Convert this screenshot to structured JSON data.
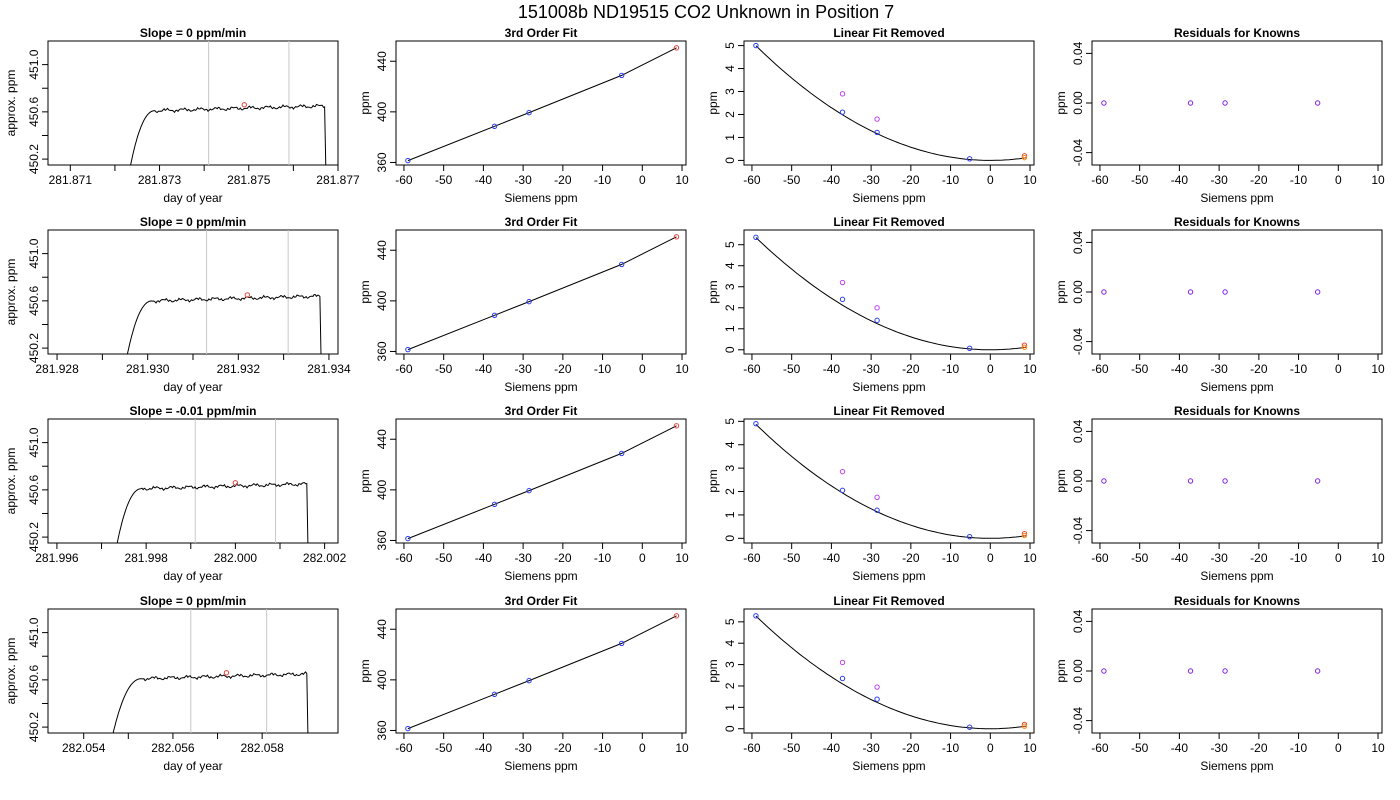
{
  "figure": {
    "title": "151008b     ND19515   CO2 Unknown in Position  7"
  },
  "chart_data": [
    {
      "type": "line",
      "panel": "time-series",
      "row": 1,
      "title": "Slope =  0  ppm/min",
      "xlabel": "day of year",
      "ylabel": "approx. ppm",
      "xlim": [
        281.8705,
        281.877
      ],
      "ylim": [
        450.15,
        451.2
      ],
      "xticks": [
        281.871,
        281.873,
        281.875,
        281.877
      ],
      "xtick_labels": [
        "281.871",
        "281.873",
        "281.875",
        "281.877"
      ],
      "yticks": [
        450.2,
        450.6,
        451.0
      ],
      "ytick_labels": [
        "450.2",
        "450.6",
        "451.0"
      ],
      "vlines": [
        281.8741,
        281.8759
      ],
      "trace": {
        "start": 281.8723,
        "end": 281.8767,
        "rise_end": 281.8729,
        "level": 450.66
      },
      "marker": {
        "x": 281.8749,
        "y": 450.66,
        "color": "#e8403a"
      }
    },
    {
      "type": "line",
      "panel": "time-series",
      "row": 2,
      "title": "Slope =  0  ppm/min",
      "xlabel": "day of year",
      "ylabel": "approx. ppm",
      "xlim": [
        281.9278,
        281.9342
      ],
      "ylim": [
        450.15,
        451.2
      ],
      "xticks": [
        281.928,
        281.93,
        281.932,
        281.934
      ],
      "xtick_labels": [
        "281.928",
        "281.930",
        "281.932",
        "281.934"
      ],
      "yticks": [
        450.2,
        450.6,
        451.0
      ],
      "ytick_labels": [
        "450.2",
        "450.6",
        "451.0"
      ],
      "vlines": [
        281.9313,
        281.9331
      ],
      "trace": {
        "start": 281.9295,
        "end": 281.9338,
        "rise_end": 281.9301,
        "level": 450.65
      },
      "marker": {
        "x": 281.9322,
        "y": 450.65,
        "color": "#e8403a"
      }
    },
    {
      "type": "line",
      "panel": "time-series",
      "row": 3,
      "title": "Slope =  -0.01  ppm/min",
      "xlabel": "day of year",
      "ylabel": "approx. ppm",
      "xlim": [
        281.9958,
        282.0023
      ],
      "ylim": [
        450.15,
        451.2
      ],
      "xticks": [
        281.996,
        281.998,
        282.0,
        282.002
      ],
      "xtick_labels": [
        "281.996",
        "281.998",
        "282.000",
        "282.002"
      ],
      "yticks": [
        450.2,
        450.6,
        451.0
      ],
      "ytick_labels": [
        "450.2",
        "450.6",
        "451.0"
      ],
      "vlines": [
        281.9991,
        282.0009
      ],
      "trace": {
        "start": 281.9973,
        "end": 282.0016,
        "rise_end": 281.9979,
        "level": 450.66
      },
      "marker": {
        "x": 282.0,
        "y": 450.66,
        "color": "#e8403a"
      }
    },
    {
      "type": "line",
      "panel": "time-series",
      "row": 4,
      "title": "Slope =  0  ppm/min",
      "xlabel": "day of year",
      "ylabel": "approx. ppm",
      "xlim": [
        282.0532,
        282.0597
      ],
      "ylim": [
        450.15,
        451.2
      ],
      "xticks": [
        282.054,
        282.056,
        282.058
      ],
      "xtick_labels": [
        "282.054",
        "282.056",
        "282.058"
      ],
      "yticks": [
        450.2,
        450.6,
        451.0
      ],
      "ytick_labels": [
        "450.2",
        "450.6",
        "451.0"
      ],
      "vlines": [
        282.0564,
        282.0581
      ],
      "trace": {
        "start": 282.0546,
        "end": 282.059,
        "rise_end": 282.0553,
        "level": 450.66
      },
      "marker": {
        "x": 282.0572,
        "y": 450.66,
        "color": "#e8403a"
      }
    },
    {
      "type": "scatter",
      "panel": "fit",
      "row": 1,
      "title": "3rd Order Fit",
      "xlabel": "Siemens ppm",
      "ylabel": "ppm",
      "xlim": [
        -62,
        11
      ],
      "ylim": [
        358,
        456
      ],
      "xticks": [
        -60,
        -50,
        -40,
        -30,
        -20,
        -10,
        0,
        10
      ],
      "yticks": [
        360,
        400,
        440
      ],
      "points": [
        {
          "x": -59,
          "y": 361.5,
          "color": "#2a3cf0"
        },
        {
          "x": -37.2,
          "y": 388.6,
          "color": "#2a3cf0"
        },
        {
          "x": -28.5,
          "y": 399.4,
          "color": "#2a3cf0"
        },
        {
          "x": -5.2,
          "y": 428.8,
          "color": "#2a3cf0"
        },
        {
          "x": 8.6,
          "y": 450.6,
          "color": "#e8403a"
        }
      ],
      "line": [
        [
          -59,
          361.5
        ],
        [
          -37.2,
          388.6
        ],
        [
          -28.5,
          399.4
        ],
        [
          -5.2,
          428.8
        ],
        [
          8.6,
          450.6
        ]
      ]
    },
    {
      "type": "scatter",
      "panel": "fit",
      "row": 2,
      "title": "3rd Order Fit",
      "xlabel": "Siemens ppm",
      "ylabel": "ppm",
      "xlim": [
        -62,
        11
      ],
      "ylim": [
        358,
        456
      ],
      "xticks": [
        -60,
        -50,
        -40,
        -30,
        -20,
        -10,
        0,
        10
      ],
      "yticks": [
        360,
        400,
        440
      ],
      "points": [
        {
          "x": -59,
          "y": 361.5,
          "color": "#2a3cf0"
        },
        {
          "x": -37.2,
          "y": 388.6,
          "color": "#2a3cf0"
        },
        {
          "x": -28.5,
          "y": 399.4,
          "color": "#2a3cf0"
        },
        {
          "x": -5.2,
          "y": 428.8,
          "color": "#2a3cf0"
        },
        {
          "x": 8.6,
          "y": 450.6,
          "color": "#e8403a"
        }
      ],
      "line": [
        [
          -59,
          361.5
        ],
        [
          -37.2,
          388.6
        ],
        [
          -28.5,
          399.4
        ],
        [
          -5.2,
          428.8
        ],
        [
          8.6,
          450.6
        ]
      ]
    },
    {
      "type": "scatter",
      "panel": "fit",
      "row": 3,
      "title": "3rd Order Fit",
      "xlabel": "Siemens ppm",
      "ylabel": "ppm",
      "xlim": [
        -62,
        11
      ],
      "ylim": [
        358,
        456
      ],
      "xticks": [
        -60,
        -50,
        -40,
        -30,
        -20,
        -10,
        0,
        10
      ],
      "yticks": [
        360,
        400,
        440
      ],
      "points": [
        {
          "x": -59,
          "y": 361.5,
          "color": "#2a3cf0"
        },
        {
          "x": -37.2,
          "y": 388.6,
          "color": "#2a3cf0"
        },
        {
          "x": -28.5,
          "y": 399.4,
          "color": "#2a3cf0"
        },
        {
          "x": -5.2,
          "y": 428.8,
          "color": "#2a3cf0"
        },
        {
          "x": 8.6,
          "y": 450.6,
          "color": "#e8403a"
        }
      ],
      "line": [
        [
          -59,
          361.5
        ],
        [
          -37.2,
          388.6
        ],
        [
          -28.5,
          399.4
        ],
        [
          -5.2,
          428.8
        ],
        [
          8.6,
          450.6
        ]
      ]
    },
    {
      "type": "scatter",
      "panel": "fit",
      "row": 4,
      "title": "3rd Order Fit",
      "xlabel": "Siemens ppm",
      "ylabel": "ppm",
      "xlim": [
        -62,
        11
      ],
      "ylim": [
        358,
        456
      ],
      "xticks": [
        -60,
        -50,
        -40,
        -30,
        -20,
        -10,
        0,
        10
      ],
      "yticks": [
        360,
        400,
        440
      ],
      "points": [
        {
          "x": -59,
          "y": 361.5,
          "color": "#2a3cf0"
        },
        {
          "x": -37.2,
          "y": 388.6,
          "color": "#2a3cf0"
        },
        {
          "x": -28.5,
          "y": 399.4,
          "color": "#2a3cf0"
        },
        {
          "x": -5.2,
          "y": 428.8,
          "color": "#2a3cf0"
        },
        {
          "x": 8.6,
          "y": 450.6,
          "color": "#e8403a"
        }
      ],
      "line": [
        [
          -59,
          361.5
        ],
        [
          -37.2,
          388.6
        ],
        [
          -28.5,
          399.4
        ],
        [
          -5.2,
          428.8
        ],
        [
          8.6,
          450.6
        ]
      ]
    },
    {
      "type": "scatter",
      "panel": "linear-removed",
      "row": 1,
      "title": "Linear Fit Removed",
      "xlabel": "Siemens ppm",
      "ylabel": "ppm",
      "xlim": [
        -62,
        11
      ],
      "ylim": [
        -0.2,
        5.2
      ],
      "xticks": [
        -60,
        -50,
        -40,
        -30,
        -20,
        -10,
        0,
        10
      ],
      "yticks": [
        0,
        1,
        2,
        3,
        4,
        5
      ],
      "curve": {
        "a": 0.001435,
        "b": 0.0
      },
      "points": [
        {
          "x": -59,
          "y": 5.0,
          "color": "#2a3cf0"
        },
        {
          "x": -37.2,
          "y": 2.1,
          "color": "#2a3cf0"
        },
        {
          "x": -28.5,
          "y": 1.22,
          "color": "#2a3cf0"
        },
        {
          "x": -5.2,
          "y": 0.07,
          "color": "#2a3cf0"
        },
        {
          "x": 8.6,
          "y": 0.2,
          "color": "#e8403a"
        },
        {
          "x": -37.2,
          "y": 2.9,
          "color": "#c040f0"
        },
        {
          "x": -28.5,
          "y": 1.8,
          "color": "#c040f0"
        },
        {
          "x": 8.6,
          "y": 0.12,
          "color": "#ff8c00"
        }
      ]
    },
    {
      "type": "scatter",
      "panel": "linear-removed",
      "row": 2,
      "title": "Linear Fit Removed",
      "xlabel": "Siemens ppm",
      "ylabel": "ppm",
      "xlim": [
        -62,
        11
      ],
      "ylim": [
        -0.2,
        5.7
      ],
      "xticks": [
        -60,
        -50,
        -40,
        -30,
        -20,
        -10,
        0,
        10
      ],
      "yticks": [
        0,
        1,
        2,
        3,
        4,
        5
      ],
      "curve": {
        "a": 0.001535,
        "b": 0.0
      },
      "points": [
        {
          "x": -59,
          "y": 5.35,
          "color": "#2a3cf0"
        },
        {
          "x": -37.2,
          "y": 2.4,
          "color": "#2a3cf0"
        },
        {
          "x": -28.5,
          "y": 1.4,
          "color": "#2a3cf0"
        },
        {
          "x": -5.2,
          "y": 0.07,
          "color": "#2a3cf0"
        },
        {
          "x": 8.6,
          "y": 0.22,
          "color": "#e8403a"
        },
        {
          "x": -37.2,
          "y": 3.2,
          "color": "#c040f0"
        },
        {
          "x": -28.5,
          "y": 2.0,
          "color": "#c040f0"
        },
        {
          "x": 8.6,
          "y": 0.12,
          "color": "#ff8c00"
        }
      ]
    },
    {
      "type": "scatter",
      "panel": "linear-removed",
      "row": 3,
      "title": "Linear Fit Removed",
      "xlabel": "Siemens ppm",
      "ylabel": "ppm",
      "xlim": [
        -62,
        11
      ],
      "ylim": [
        -0.2,
        5.1
      ],
      "xticks": [
        -60,
        -50,
        -40,
        -30,
        -20,
        -10,
        0,
        10
      ],
      "yticks": [
        0,
        1,
        2,
        3,
        4,
        5
      ],
      "curve": {
        "a": 0.0014,
        "b": 0.0
      },
      "points": [
        {
          "x": -59,
          "y": 4.9,
          "color": "#2a3cf0"
        },
        {
          "x": -37.2,
          "y": 2.05,
          "color": "#2a3cf0"
        },
        {
          "x": -28.5,
          "y": 1.2,
          "color": "#2a3cf0"
        },
        {
          "x": -5.2,
          "y": 0.07,
          "color": "#2a3cf0"
        },
        {
          "x": 8.6,
          "y": 0.2,
          "color": "#e8403a"
        },
        {
          "x": -37.2,
          "y": 2.85,
          "color": "#c040f0"
        },
        {
          "x": -28.5,
          "y": 1.75,
          "color": "#c040f0"
        },
        {
          "x": 8.6,
          "y": 0.12,
          "color": "#ff8c00"
        }
      ]
    },
    {
      "type": "scatter",
      "panel": "linear-removed",
      "row": 4,
      "title": "Linear Fit Removed",
      "xlabel": "Siemens ppm",
      "ylabel": "ppm",
      "xlim": [
        -62,
        11
      ],
      "ylim": [
        -0.2,
        5.6
      ],
      "xticks": [
        -60,
        -50,
        -40,
        -30,
        -20,
        -10,
        0,
        10
      ],
      "yticks": [
        0,
        1,
        2,
        3,
        4,
        5
      ],
      "curve": {
        "a": 0.001515,
        "b": 0.0
      },
      "points": [
        {
          "x": -59,
          "y": 5.28,
          "color": "#2a3cf0"
        },
        {
          "x": -37.2,
          "y": 2.35,
          "color": "#2a3cf0"
        },
        {
          "x": -28.5,
          "y": 1.38,
          "color": "#2a3cf0"
        },
        {
          "x": -5.2,
          "y": 0.07,
          "color": "#2a3cf0"
        },
        {
          "x": 8.6,
          "y": 0.2,
          "color": "#e8403a"
        },
        {
          "x": -37.2,
          "y": 3.1,
          "color": "#c040f0"
        },
        {
          "x": -28.5,
          "y": 1.95,
          "color": "#c040f0"
        },
        {
          "x": 8.6,
          "y": 0.12,
          "color": "#ff8c00"
        }
      ]
    },
    {
      "type": "scatter",
      "panel": "residuals",
      "row": 1,
      "title": "Residuals for Knowns",
      "xlabel": "Siemens ppm",
      "ylabel": "ppm",
      "xlim": [
        -62,
        11
      ],
      "ylim": [
        -0.05,
        0.05
      ],
      "xticks": [
        -60,
        -50,
        -40,
        -30,
        -20,
        -10,
        0,
        10
      ],
      "yticks": [
        -0.04,
        0.0,
        0.04
      ],
      "ytick_labels": [
        "-0.04",
        "0.00",
        "0.04"
      ],
      "points": [
        {
          "x": -59,
          "y": 0,
          "color": "#8020e0"
        },
        {
          "x": -37.2,
          "y": 0,
          "color": "#8020e0"
        },
        {
          "x": -28.5,
          "y": 0,
          "color": "#8020e0"
        },
        {
          "x": -5.2,
          "y": 0,
          "color": "#8020e0"
        }
      ]
    },
    {
      "type": "scatter",
      "panel": "residuals",
      "row": 2,
      "title": "Residuals for Knowns",
      "xlabel": "Siemens ppm",
      "ylabel": "ppm",
      "xlim": [
        -62,
        11
      ],
      "ylim": [
        -0.05,
        0.05
      ],
      "xticks": [
        -60,
        -50,
        -40,
        -30,
        -20,
        -10,
        0,
        10
      ],
      "yticks": [
        -0.04,
        0.0,
        0.04
      ],
      "ytick_labels": [
        "-0.04",
        "0.00",
        "0.04"
      ],
      "points": [
        {
          "x": -59,
          "y": 0,
          "color": "#8020e0"
        },
        {
          "x": -37.2,
          "y": 0,
          "color": "#8020e0"
        },
        {
          "x": -28.5,
          "y": 0,
          "color": "#8020e0"
        },
        {
          "x": -5.2,
          "y": 0,
          "color": "#8020e0"
        }
      ]
    },
    {
      "type": "scatter",
      "panel": "residuals",
      "row": 3,
      "title": "Residuals for Knowns",
      "xlabel": "Siemens ppm",
      "ylabel": "ppm",
      "xlim": [
        -62,
        11
      ],
      "ylim": [
        -0.05,
        0.05
      ],
      "xticks": [
        -60,
        -50,
        -40,
        -30,
        -20,
        -10,
        0,
        10
      ],
      "yticks": [
        -0.04,
        0.0,
        0.04
      ],
      "ytick_labels": [
        "-0.04",
        "0.00",
        "0.04"
      ],
      "points": [
        {
          "x": -59,
          "y": 0,
          "color": "#8020e0"
        },
        {
          "x": -37.2,
          "y": 0,
          "color": "#8020e0"
        },
        {
          "x": -28.5,
          "y": 0,
          "color": "#8020e0"
        },
        {
          "x": -5.2,
          "y": 0,
          "color": "#8020e0"
        }
      ]
    },
    {
      "type": "scatter",
      "panel": "residuals",
      "row": 4,
      "title": "Residuals for Knowns",
      "xlabel": "Siemens ppm",
      "ylabel": "ppm",
      "xlim": [
        -62,
        11
      ],
      "ylim": [
        -0.05,
        0.05
      ],
      "xticks": [
        -60,
        -50,
        -40,
        -30,
        -20,
        -10,
        0,
        10
      ],
      "yticks": [
        -0.04,
        0.0,
        0.04
      ],
      "ytick_labels": [
        "-0.04",
        "0.00",
        "0.04"
      ],
      "points": [
        {
          "x": -59,
          "y": 0,
          "color": "#8020e0"
        },
        {
          "x": -37.2,
          "y": 0,
          "color": "#8020e0"
        },
        {
          "x": -28.5,
          "y": 0,
          "color": "#8020e0"
        },
        {
          "x": -5.2,
          "y": 0,
          "color": "#8020e0"
        }
      ]
    }
  ]
}
